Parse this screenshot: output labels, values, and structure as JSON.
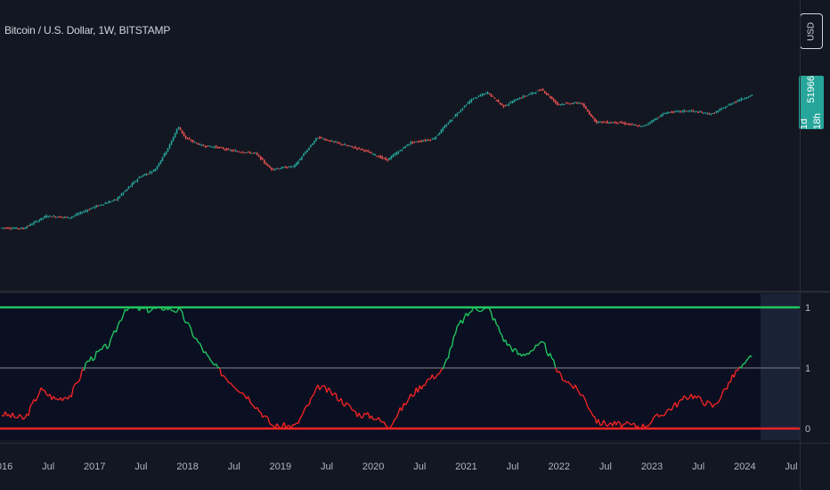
{
  "header": {
    "symbol_title": "Bitcoin / U.S. Dollar, 1W, BITSTAMP",
    "currency_button": "USD",
    "price_value": "51966",
    "price_countdown": "1d 18h"
  },
  "colors": {
    "background": "#131722",
    "oscillator_background": "#0a0f22",
    "up": "#26a69a",
    "down": "#ef5350",
    "osc_bull": "#22c55e",
    "osc_bear": "#ef2424",
    "upper_band": "#22c55e",
    "lower_band": "#ef2424",
    "mid_band": "#5d606b",
    "future_shade": "#1a2238"
  },
  "chart_data": [
    {
      "type": "line",
      "title": "Bitcoin / U.S. Dollar, 1W, BITSTAMP",
      "series": [
        {
          "name": "Bitcoin / U.S. Dollar",
          "points": [
            [
              "2016-01",
              430
            ],
            [
              "2016-04",
              420
            ],
            [
              "2016-07",
              660
            ],
            [
              "2016-10",
              620
            ],
            [
              "2017-01",
              900
            ],
            [
              "2017-04",
              1200
            ],
            [
              "2017-07",
              2700
            ],
            [
              "2017-09",
              3500
            ],
            [
              "2017-11",
              9000
            ],
            [
              "2017-12",
              17000
            ],
            [
              "2018-01",
              11000
            ],
            [
              "2018-03",
              8500
            ],
            [
              "2018-05",
              8000
            ],
            [
              "2018-07",
              7000
            ],
            [
              "2018-10",
              6400
            ],
            [
              "2018-12",
              3600
            ],
            [
              "2019-03",
              4000
            ],
            [
              "2019-06",
              11500
            ],
            [
              "2019-09",
              9000
            ],
            [
              "2019-12",
              7200
            ],
            [
              "2020-03",
              5000
            ],
            [
              "2020-06",
              9400
            ],
            [
              "2020-09",
              10800
            ],
            [
              "2020-12",
              27000
            ],
            [
              "2021-02",
              46000
            ],
            [
              "2021-04",
              58000
            ],
            [
              "2021-06",
              35000
            ],
            [
              "2021-08",
              47000
            ],
            [
              "2021-11",
              65000
            ],
            [
              "2022-01",
              38000
            ],
            [
              "2022-04",
              40000
            ],
            [
              "2022-06",
              20000
            ],
            [
              "2022-09",
              19500
            ],
            [
              "2022-12",
              16800
            ],
            [
              "2023-03",
              28000
            ],
            [
              "2023-06",
              30000
            ],
            [
              "2023-09",
              26500
            ],
            [
              "2023-12",
              42000
            ],
            [
              "2024-02",
              51966
            ]
          ]
        }
      ]
    },
    {
      "type": "line",
      "yticks": [
        "1",
        "1",
        "0"
      ],
      "xticks": [
        "2016",
        "Jul",
        "2017",
        "Jul",
        "2018",
        "Jul",
        "2019",
        "Jul",
        "2020",
        "Jul",
        "2021",
        "Jul",
        "2022",
        "Jul",
        "2023",
        "Jul",
        "2024",
        "Jul"
      ],
      "series": [
        {
          "points": [
            [
              "2016-01",
              0.12
            ],
            [
              "2016-04",
              0.08
            ],
            [
              "2016-06",
              0.32
            ],
            [
              "2016-08",
              0.24
            ],
            [
              "2016-10",
              0.28
            ],
            [
              "2016-12",
              0.55
            ],
            [
              "2017-03",
              0.7
            ],
            [
              "2017-05",
              1.0
            ],
            [
              "2017-08",
              0.98
            ],
            [
              "2017-10",
              1.0
            ],
            [
              "2017-12",
              0.97
            ],
            [
              "2018-02",
              0.75
            ],
            [
              "2018-04",
              0.55
            ],
            [
              "2018-06",
              0.42
            ],
            [
              "2018-09",
              0.25
            ],
            [
              "2018-12",
              0.02
            ],
            [
              "2019-03",
              0.02
            ],
            [
              "2019-06",
              0.35
            ],
            [
              "2019-08",
              0.28
            ],
            [
              "2019-11",
              0.12
            ],
            [
              "2020-01",
              0.1
            ],
            [
              "2020-03",
              0.02
            ],
            [
              "2020-06",
              0.28
            ],
            [
              "2020-08",
              0.4
            ],
            [
              "2020-10",
              0.48
            ],
            [
              "2020-12",
              0.85
            ],
            [
              "2021-02",
              1.0
            ],
            [
              "2021-04",
              0.98
            ],
            [
              "2021-06",
              0.72
            ],
            [
              "2021-08",
              0.6
            ],
            [
              "2021-11",
              0.7
            ],
            [
              "2022-01",
              0.45
            ],
            [
              "2022-04",
              0.28
            ],
            [
              "2022-06",
              0.05
            ],
            [
              "2022-09",
              0.03
            ],
            [
              "2022-12",
              0.02
            ],
            [
              "2023-03",
              0.15
            ],
            [
              "2023-06",
              0.28
            ],
            [
              "2023-09",
              0.18
            ],
            [
              "2023-12",
              0.48
            ],
            [
              "2024-01",
              0.52
            ],
            [
              "2024-02",
              0.62
            ]
          ]
        }
      ],
      "bands": [
        1.0,
        0.5,
        0.0
      ],
      "ylim": [
        0,
        1
      ]
    }
  ]
}
